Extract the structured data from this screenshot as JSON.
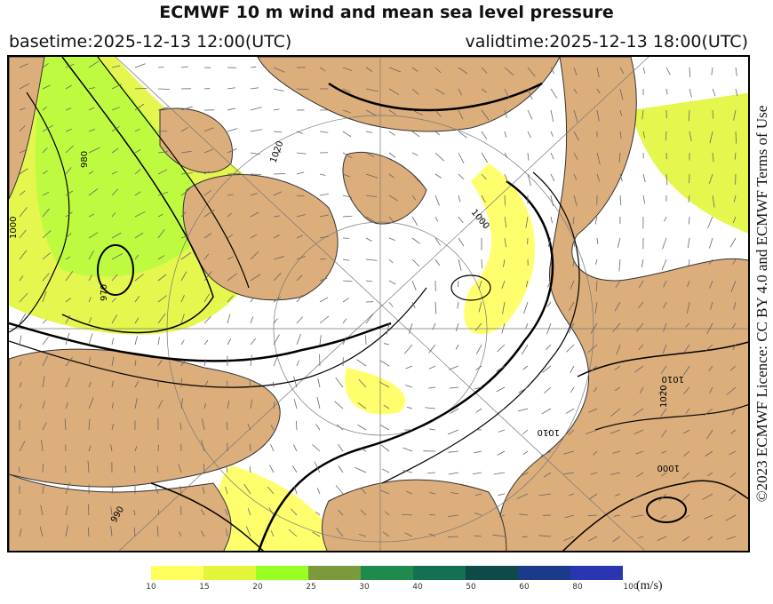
{
  "title": "ECMWF 10 m wind and mean sea level pressure",
  "basetime": "basetime:2025-12-13 12:00(UTC)",
  "validtime": "validtime:2025-12-13 18:00(UTC)",
  "credit": "©2023 ECMWF Licence: CC BY 4.0 and ECMWF Terms of Use",
  "map": {
    "land_color": "#dcae7c",
    "sea_color": "#ffffff",
    "isobar_labels": [
      "980",
      "970",
      "1000",
      "1000",
      "1010",
      "1020",
      "1010",
      "1000",
      "990",
      "1020"
    ]
  },
  "legend": {
    "unit": "(m/s)",
    "ticks": [
      "10",
      "15",
      "20",
      "25",
      "30",
      "40",
      "50",
      "60",
      "80",
      "100"
    ],
    "colors": [
      "#ffff5e",
      "#e3f53a",
      "#99ff22",
      "#7a9a3c",
      "#1f8a4e",
      "#137052",
      "#0f4a48",
      "#1c3a8c",
      "#2a36b0"
    ]
  }
}
